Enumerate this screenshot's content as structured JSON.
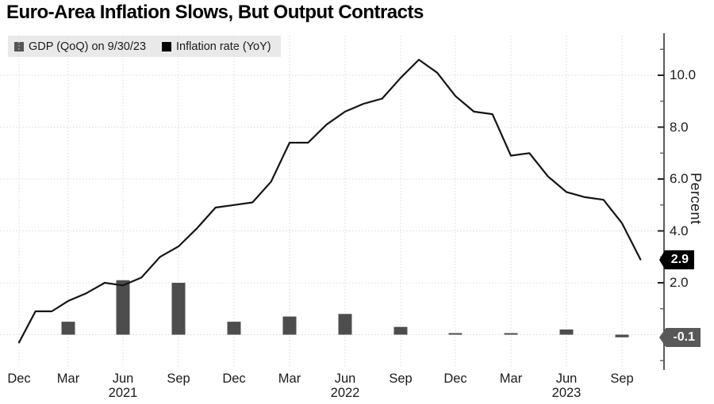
{
  "header": {
    "title": "Euro-Area Inflation Slows, But Output Contracts"
  },
  "legend": {
    "items": [
      {
        "name": "gdp",
        "label": "GDP (QoQ) on 9/30/23",
        "swatch_color": "#555555"
      },
      {
        "name": "inflation",
        "label": "Inflation rate (YoY)",
        "swatch_color": "#000000"
      }
    ]
  },
  "chart_data": {
    "type": "combo",
    "title": "Euro-Area Inflation Slows, But Output Contracts",
    "ylabel": "Percent",
    "ylim": [
      -1.4,
      11.6
    ],
    "grid": true,
    "y_gridlines": [
      0,
      2,
      4,
      6,
      8,
      10
    ],
    "y_major_ticks": [
      2,
      4,
      6,
      8,
      10
    ],
    "y_major_tick_labels": [
      "2.0",
      "4.0",
      "6.0",
      "8.0",
      "10.0"
    ],
    "y_minor_ticks": [
      -1,
      1,
      3,
      5,
      7,
      9,
      11
    ],
    "x_quarter_ticks": [
      "Dec",
      "Mar",
      "Jun",
      "Sep",
      "Dec",
      "Mar",
      "Jun",
      "Sep",
      "Dec",
      "Mar",
      "Jun",
      "Sep"
    ],
    "x_year_labels": [
      {
        "text": "2021",
        "tick_index": 2
      },
      {
        "text": "2022",
        "tick_index": 6
      },
      {
        "text": "2023",
        "tick_index": 10
      }
    ],
    "series": [
      {
        "name": "GDP (QoQ) on 9/30/23",
        "type": "bar",
        "color": "#4d4d4d",
        "quarters": [
          "Mar 2021",
          "Jun 2021",
          "Sep 2021",
          "Dec 2021",
          "Mar 2022",
          "Jun 2022",
          "Sep 2022",
          "Dec 2022",
          "Mar 2023",
          "Jun 2023",
          "Sep 2023"
        ],
        "values": [
          0.5,
          2.1,
          2.0,
          0.5,
          0.7,
          0.8,
          0.3,
          0.0,
          0.0,
          0.2,
          -0.1
        ]
      },
      {
        "name": "Inflation rate (YoY)",
        "type": "line",
        "color": "#141414",
        "months": [
          "Dec 2020",
          "Jan 2021",
          "Feb 2021",
          "Mar 2021",
          "Apr 2021",
          "May 2021",
          "Jun 2021",
          "Jul 2021",
          "Aug 2021",
          "Sep 2021",
          "Oct 2021",
          "Nov 2021",
          "Dec 2021",
          "Jan 2022",
          "Feb 2022",
          "Mar 2022",
          "Apr 2022",
          "May 2022",
          "Jun 2022",
          "Jul 2022",
          "Aug 2022",
          "Sep 2022",
          "Oct 2022",
          "Nov 2022",
          "Dec 2022",
          "Jan 2023",
          "Feb 2023",
          "Mar 2023",
          "Apr 2023",
          "May 2023",
          "Jun 2023",
          "Jul 2023",
          "Aug 2023",
          "Sep 2023",
          "Oct 2023"
        ],
        "values": [
          -0.3,
          0.9,
          0.9,
          1.3,
          1.6,
          2.0,
          1.9,
          2.2,
          3.0,
          3.4,
          4.1,
          4.9,
          5.0,
          5.1,
          5.9,
          7.4,
          7.4,
          8.1,
          8.6,
          8.9,
          9.1,
          9.9,
          10.6,
          10.1,
          9.2,
          8.6,
          8.5,
          6.9,
          7.0,
          6.1,
          5.5,
          5.3,
          5.2,
          4.3,
          2.9
        ]
      }
    ],
    "end_labels": [
      {
        "series": "Inflation rate (YoY)",
        "text": "2.9",
        "bg_color": "#000000"
      },
      {
        "series": "GDP (QoQ) on 9/30/23",
        "text": "-0.1",
        "bg_color": "#595959"
      }
    ],
    "legend_position": "top-left"
  }
}
